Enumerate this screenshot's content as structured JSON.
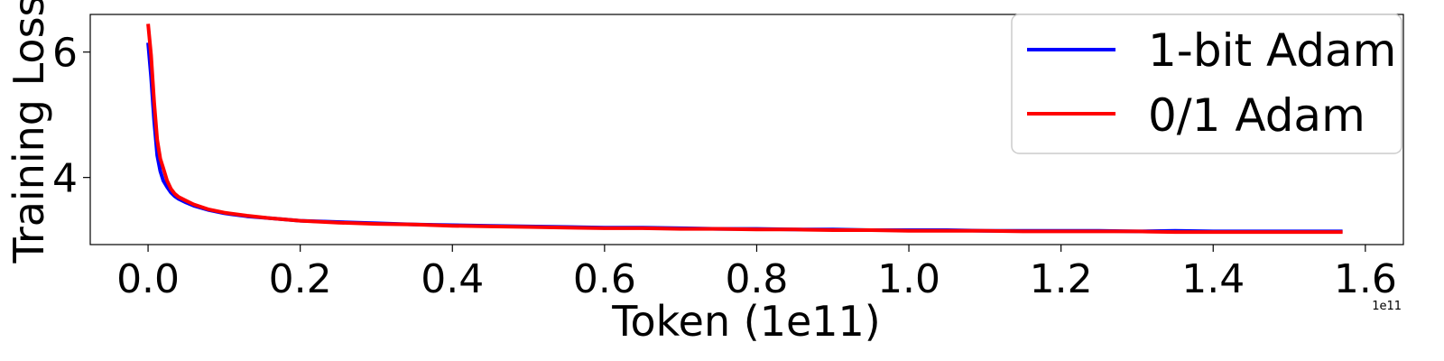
{
  "chart_data": {
    "type": "line",
    "xlabel": "Token (1e11)",
    "ylabel": "Training Loss",
    "x_offset_label": "1e11",
    "xlim": [
      -0.076,
      1.65
    ],
    "ylim": [
      2.93,
      6.6
    ],
    "x_ticks": [
      0.0,
      0.2,
      0.4,
      0.6,
      0.8,
      1.0,
      1.2,
      1.4,
      1.6
    ],
    "x_tick_labels": [
      "0.0",
      "0.2",
      "0.4",
      "0.6",
      "0.8",
      "1.0",
      "1.2",
      "1.4",
      "1.6"
    ],
    "y_ticks": [
      4,
      6
    ],
    "y_tick_labels": [
      "4",
      "6"
    ],
    "grid": false,
    "legend_position": "top-right",
    "series": [
      {
        "name": "1-bit Adam",
        "color": "#0000ff",
        "x": [
          0.0,
          0.004,
          0.008,
          0.012,
          0.016,
          0.02,
          0.025,
          0.03,
          0.035,
          0.04,
          0.05,
          0.06,
          0.08,
          0.1,
          0.13,
          0.16,
          0.2,
          0.25,
          0.3,
          0.35,
          0.4,
          0.45,
          0.5,
          0.55,
          0.6,
          0.65,
          0.7,
          0.75,
          0.8,
          0.85,
          0.9,
          0.95,
          1.0,
          1.05,
          1.1,
          1.15,
          1.2,
          1.25,
          1.3,
          1.35,
          1.4,
          1.45,
          1.5,
          1.57
        ],
        "y": [
          6.15,
          5.6,
          4.9,
          4.35,
          4.1,
          3.95,
          3.85,
          3.76,
          3.7,
          3.66,
          3.6,
          3.55,
          3.48,
          3.43,
          3.38,
          3.35,
          3.31,
          3.29,
          3.27,
          3.25,
          3.24,
          3.23,
          3.22,
          3.21,
          3.2,
          3.2,
          3.19,
          3.18,
          3.18,
          3.17,
          3.17,
          3.16,
          3.16,
          3.16,
          3.15,
          3.15,
          3.15,
          3.15,
          3.14,
          3.15,
          3.14,
          3.14,
          3.14,
          3.14
        ]
      },
      {
        "name": "0/1 Adam",
        "color": "#ff0000",
        "x": [
          0.0,
          0.004,
          0.008,
          0.012,
          0.016,
          0.02,
          0.025,
          0.03,
          0.035,
          0.04,
          0.05,
          0.06,
          0.08,
          0.1,
          0.13,
          0.16,
          0.2,
          0.25,
          0.3,
          0.35,
          0.4,
          0.45,
          0.5,
          0.55,
          0.6,
          0.65,
          0.7,
          0.75,
          0.8,
          0.85,
          0.9,
          0.95,
          1.0,
          1.05,
          1.1,
          1.15,
          1.2,
          1.25,
          1.3,
          1.35,
          1.4,
          1.45,
          1.5,
          1.57
        ],
        "y": [
          6.45,
          5.95,
          5.2,
          4.6,
          4.3,
          4.15,
          3.95,
          3.82,
          3.74,
          3.69,
          3.63,
          3.57,
          3.49,
          3.44,
          3.39,
          3.35,
          3.31,
          3.28,
          3.26,
          3.25,
          3.23,
          3.22,
          3.21,
          3.2,
          3.19,
          3.19,
          3.18,
          3.18,
          3.17,
          3.17,
          3.16,
          3.16,
          3.15,
          3.15,
          3.15,
          3.14,
          3.14,
          3.14,
          3.14,
          3.13,
          3.13,
          3.13,
          3.13,
          3.13
        ]
      }
    ]
  }
}
